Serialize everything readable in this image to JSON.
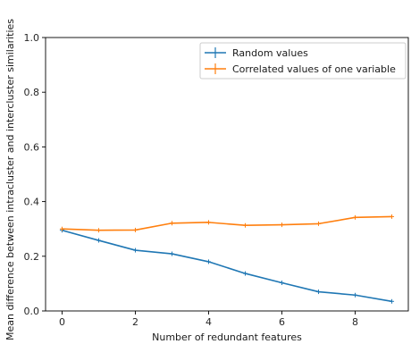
{
  "chart_data": {
    "type": "line",
    "title": "",
    "xlabel": "Number of redundant features",
    "ylabel": "Mean difference between intracluster and intercluster similarities",
    "xlim": [
      -0.45,
      9.45
    ],
    "ylim": [
      0.0,
      1.0
    ],
    "xticks": [
      0,
      2,
      4,
      6,
      8
    ],
    "yticks": [
      0.0,
      0.2,
      0.4,
      0.6,
      0.8,
      1.0
    ],
    "x": [
      0,
      1,
      2,
      3,
      4,
      5,
      6,
      7,
      8,
      9
    ],
    "grid": false,
    "legend_position": "upper-right",
    "series": [
      {
        "name": "Random values",
        "color": "#1f77b4",
        "values": [
          0.295,
          0.258,
          0.222,
          0.209,
          0.18,
          0.137,
          0.103,
          0.07,
          0.058,
          0.035
        ]
      },
      {
        "name": "Correlated values of one variable",
        "color": "#ff7f0e",
        "values": [
          0.3,
          0.295,
          0.296,
          0.321,
          0.324,
          0.313,
          0.315,
          0.319,
          0.342,
          0.345
        ]
      }
    ]
  }
}
